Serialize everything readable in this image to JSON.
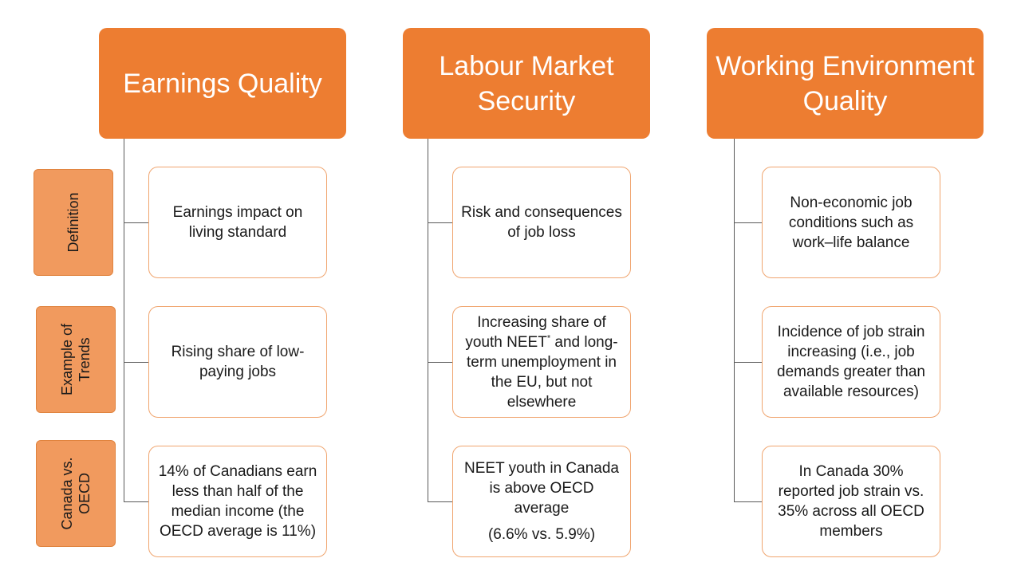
{
  "row_labels": {
    "definition": "Definition",
    "trends": "Example of Trends",
    "canada": "Canada vs. OECD"
  },
  "columns": [
    {
      "header": "Earnings Quality",
      "definition": "Earnings impact on living standard",
      "trends": "Rising share of low-paying jobs",
      "canada": "14% of Canadians earn less than half of the median income (the OECD average is 11%)"
    },
    {
      "header": "Labour Market Security",
      "definition": "Risk and consequences of job loss",
      "trends_before": "Increasing share of youth NEET",
      "trends_sup": "*",
      "trends_after": " and long-term unemployment in the EU, but not elsewhere",
      "canada": "NEET youth in Canada is above OECD average",
      "canada_extra": "(6.6% vs. 5.9%)"
    },
    {
      "header": "Working Environment Quality",
      "definition": "Non-economic job conditions such as work–life balance",
      "trends": "Incidence of job strain increasing (i.e., job demands greater than available resources)",
      "canada": "In Canada 30% reported job strain vs. 35% across all OECD members"
    }
  ],
  "colors": {
    "header": "#ED7D31",
    "row_label": "#F19A5E",
    "card_border": "#F0A56F"
  }
}
